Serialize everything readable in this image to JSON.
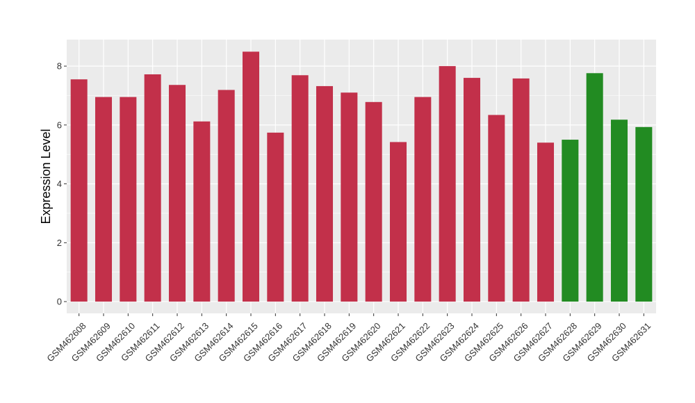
{
  "chart_data": {
    "type": "bar",
    "title": "",
    "xlabel": "",
    "ylabel": "Expression Level",
    "ylim": [
      -0.4,
      8.9
    ],
    "yticks": [
      0,
      2,
      4,
      6,
      8
    ],
    "grid": true,
    "legend": "none",
    "categories": [
      "GSM462608",
      "GSM462609",
      "GSM462610",
      "GSM462611",
      "GSM462612",
      "GSM462613",
      "GSM462614",
      "GSM462615",
      "GSM462616",
      "GSM462617",
      "GSM462618",
      "GSM462619",
      "GSM462620",
      "GSM462621",
      "GSM462622",
      "GSM462623",
      "GSM462624",
      "GSM462625",
      "GSM462626",
      "GSM462627",
      "GSM462628",
      "GSM462629",
      "GSM462630",
      "GSM462631"
    ],
    "values": [
      7.55,
      6.95,
      6.95,
      7.72,
      7.36,
      6.12,
      7.19,
      8.49,
      5.74,
      7.69,
      7.32,
      7.1,
      6.78,
      5.42,
      6.95,
      8.0,
      7.6,
      6.34,
      7.58,
      5.4,
      5.5,
      7.76,
      6.18,
      5.93
    ],
    "colors": [
      "#C2304A",
      "#C2304A",
      "#C2304A",
      "#C2304A",
      "#C2304A",
      "#C2304A",
      "#C2304A",
      "#C2304A",
      "#C2304A",
      "#C2304A",
      "#C2304A",
      "#C2304A",
      "#C2304A",
      "#C2304A",
      "#C2304A",
      "#C2304A",
      "#C2304A",
      "#C2304A",
      "#C2304A",
      "#C2304A",
      "#228B22",
      "#228B22",
      "#228B22",
      "#228B22"
    ],
    "panel_background": "#EBEBEB",
    "grid_color": "#FFFFFF"
  }
}
